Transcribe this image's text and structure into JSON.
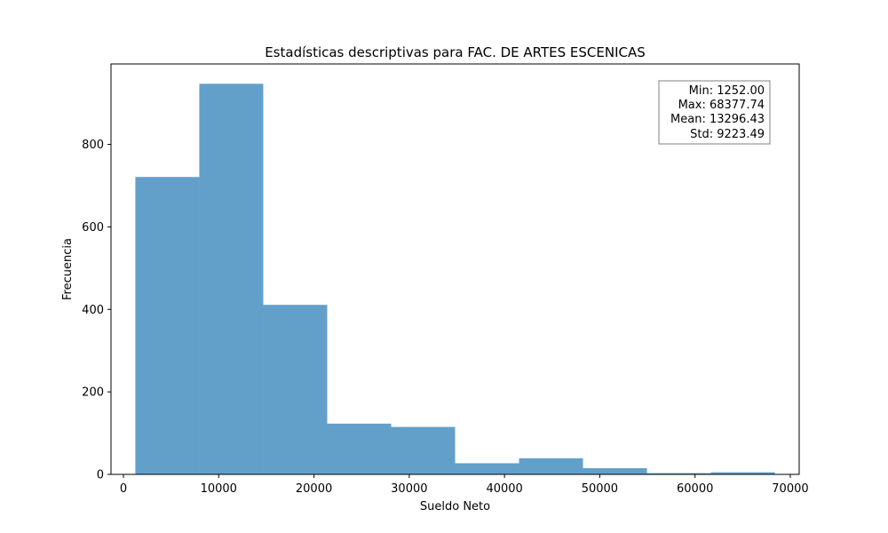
{
  "chart_data": {
    "type": "bar",
    "title": "Estadísticas descriptivas para FAC. DE ARTES ESCENICAS",
    "xlabel": "Sueldo Neto",
    "ylabel": "Frecuencia",
    "xlim": [
      -1305,
      70935
    ],
    "ylim": [
      0,
      995
    ],
    "xticks": [
      0,
      10000,
      20000,
      30000,
      40000,
      50000,
      60000,
      70000
    ],
    "yticks": [
      0,
      200,
      400,
      600,
      800
    ],
    "bin_edges": [
      1252.0,
      7964.57,
      14677.15,
      21389.72,
      28102.3,
      34814.87,
      41527.44,
      48240.02,
      54952.59,
      61665.17,
      68377.74
    ],
    "values": [
      721,
      947,
      411,
      123,
      115,
      27,
      39,
      15,
      3,
      5
    ],
    "bar_color": "#1f77b4",
    "bar_opacity": 0.7,
    "grid": false,
    "stats_box": {
      "placement": "top-right",
      "lines": [
        "Min: 1252.00",
        "Max: 68377.74",
        "Mean: 13296.43",
        "Std: 9223.49"
      ]
    }
  }
}
